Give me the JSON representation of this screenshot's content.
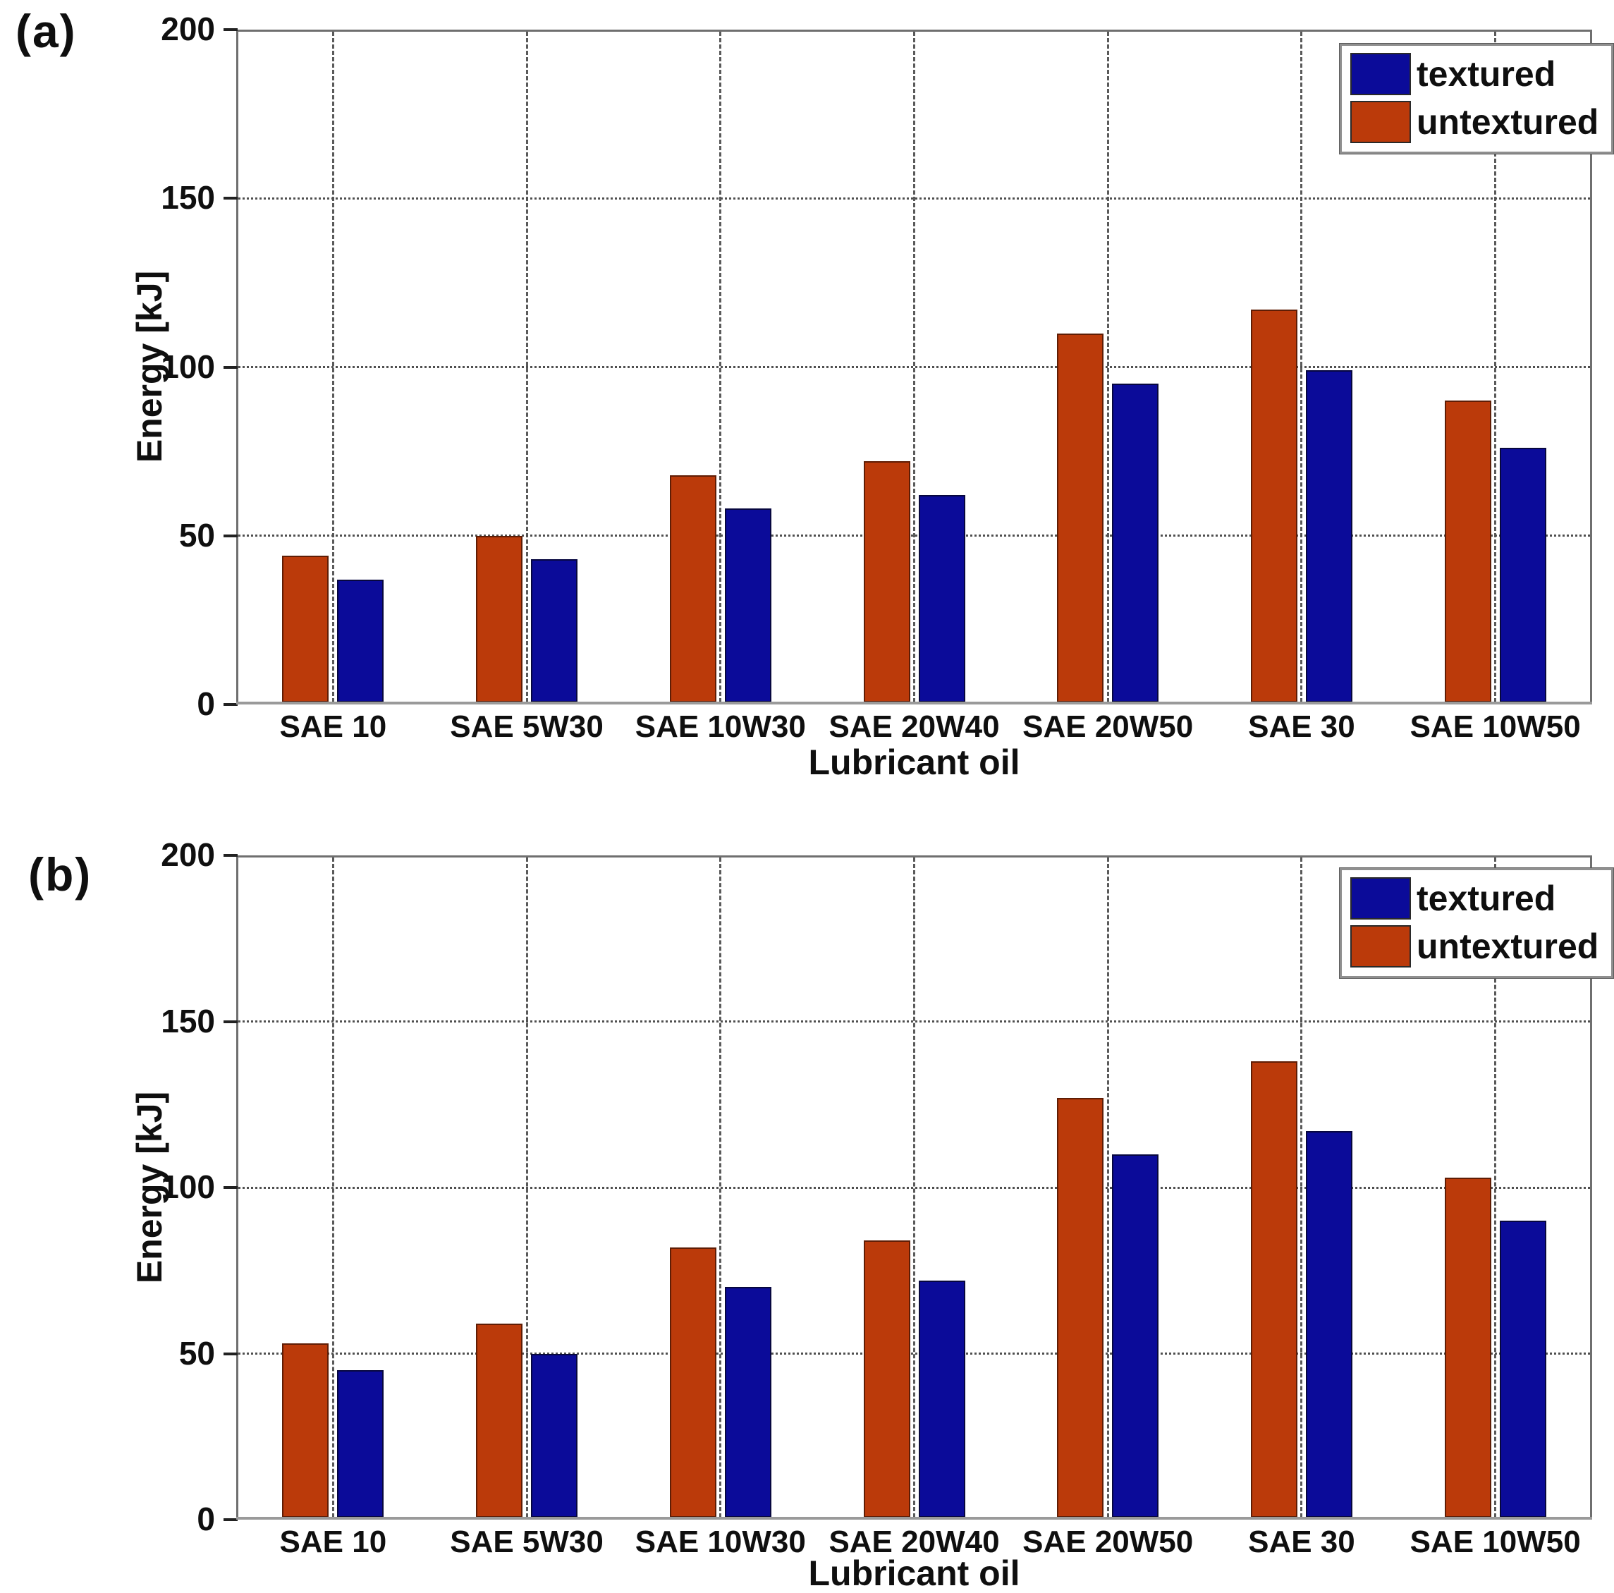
{
  "figure": {
    "background": "#ffffff",
    "panel_a_label": "(a)",
    "panel_b_label": "(b)"
  },
  "colors": {
    "textured_fill": "#0b0b99",
    "textured_border": "#07073f",
    "untextured_fill": "#bb3a0a",
    "untextured_border": "#5f1d05",
    "grid": "#4f4f4f",
    "axis_box": "#6f6f6f",
    "text": "#0f0f0f"
  },
  "legend": {
    "items": [
      {
        "label": "textured",
        "color_key": "textured_fill"
      },
      {
        "label": "untextured",
        "color_key": "untextured_fill"
      }
    ],
    "position": "top-right"
  },
  "chart_data": [
    {
      "id": "a",
      "type": "bar",
      "panel_label": "(a)",
      "title": "",
      "xlabel": "Lubricant oil",
      "ylabel": "Energy [kJ]",
      "ylim": [
        0,
        200
      ],
      "yticks": [
        0,
        50,
        100,
        150,
        200
      ],
      "grid": true,
      "legend_position": "top-right",
      "categories": [
        "SAE 10",
        "SAE 5W30",
        "SAE 10W30",
        "SAE 20W40",
        "SAE 20W50",
        "SAE 30",
        "SAE 10W50"
      ],
      "series": [
        {
          "name": "untextured",
          "color": "#bb3a0a",
          "border": "#5f1d05",
          "values": [
            44,
            50,
            68,
            72,
            110,
            117,
            90
          ]
        },
        {
          "name": "textured",
          "color": "#0b0b99",
          "border": "#07073f",
          "values": [
            37,
            43,
            58,
            62,
            95,
            99,
            76
          ]
        }
      ]
    },
    {
      "id": "b",
      "type": "bar",
      "panel_label": "(b)",
      "title": "",
      "xlabel": "Lubricant oil",
      "ylabel": "Energy [kJ]",
      "ylim": [
        0,
        200
      ],
      "yticks": [
        0,
        50,
        100,
        150,
        200
      ],
      "grid": true,
      "legend_position": "top-right",
      "categories": [
        "SAE 10",
        "SAE 5W30",
        "SAE 10W30",
        "SAE 20W40",
        "SAE 20W50",
        "SAE 30",
        "SAE 10W50"
      ],
      "series": [
        {
          "name": "untextured",
          "color": "#bb3a0a",
          "border": "#5f1d05",
          "values": [
            53,
            59,
            82,
            84,
            127,
            138,
            103
          ]
        },
        {
          "name": "textured",
          "color": "#0b0b99",
          "border": "#07073f",
          "values": [
            45,
            50,
            70,
            72,
            110,
            117,
            90
          ]
        }
      ]
    }
  ]
}
